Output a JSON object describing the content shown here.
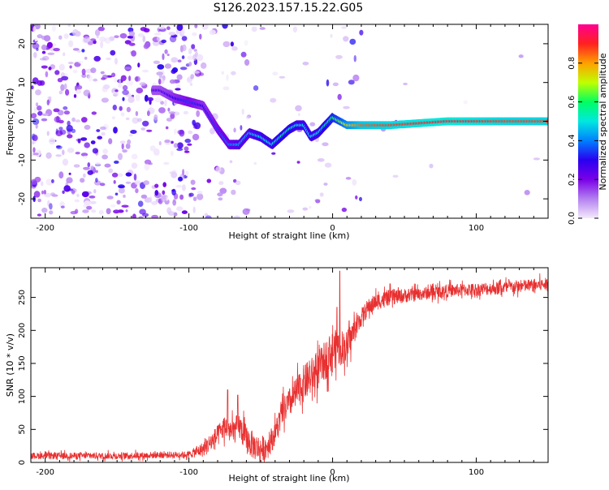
{
  "title": "S126.2023.157.15.22.G05",
  "chart_data": [
    {
      "type": "heatmap",
      "name": "spectrogram",
      "xlabel": "Height of straight line (km)",
      "ylabel": "Frequency (Hz)",
      "xlim": [
        -210,
        150
      ],
      "ylim": [
        -25,
        25
      ],
      "xticks": [
        -200,
        -100,
        0,
        100
      ],
      "yticks": [
        -20,
        -10,
        0,
        10,
        20
      ],
      "colorbar": {
        "label": "Normalized spectral amplitude",
        "range": [
          0,
          1
        ],
        "ticks": [
          0.0,
          0.2,
          0.4,
          0.6,
          0.8
        ],
        "colormap": [
          "#f4eafc",
          "#b380f0",
          "#7a00e8",
          "#2a00f0",
          "#0080ff",
          "#00e8e0",
          "#00ff60",
          "#c0ff00",
          "#ffa000",
          "#ff2020",
          "#ff0090"
        ]
      },
      "ridge": {
        "description": "peak frequency vs height",
        "x": [
          -120,
          -110,
          -100,
          -90,
          -80,
          -72,
          -65,
          -58,
          -50,
          -42,
          -36,
          -30,
          -25,
          -20,
          -15,
          -10,
          -5,
          0,
          5,
          10,
          20,
          40,
          60,
          80,
          100,
          120,
          150
        ],
        "y": [
          8,
          6,
          5,
          4,
          -2,
          -6,
          -6,
          -3,
          -4,
          -6,
          -4,
          -2,
          -1,
          -1,
          -4,
          -3,
          -1,
          1,
          0,
          -1,
          -1,
          -1,
          -0.5,
          0,
          0,
          0,
          0
        ],
        "amplitude": [
          0.25,
          0.3,
          0.35,
          0.3,
          0.35,
          0.4,
          0.45,
          0.45,
          0.5,
          0.5,
          0.55,
          0.55,
          0.5,
          0.5,
          0.5,
          0.5,
          0.55,
          0.6,
          0.65,
          0.75,
          0.85,
          0.88,
          0.9,
          0.92,
          0.9,
          0.88,
          0.88
        ]
      }
    },
    {
      "type": "line",
      "name": "snr",
      "xlabel": "Height of straight line (km)",
      "ylabel": "SNR (10 * v/v)",
      "xlim": [
        -210,
        150
      ],
      "ylim": [
        0,
        295
      ],
      "xticks": [
        -200,
        -100,
        0,
        100
      ],
      "yticks": [
        0,
        50,
        100,
        150,
        200,
        250
      ],
      "color": "#e83030",
      "trend": {
        "x": [
          -210,
          -150,
          -100,
          -90,
          -80,
          -75,
          -70,
          -65,
          -60,
          -55,
          -50,
          -45,
          -40,
          -35,
          -30,
          -25,
          -20,
          -15,
          -10,
          -5,
          0,
          5,
          10,
          15,
          20,
          25,
          30,
          40,
          60,
          80,
          100,
          120,
          150
        ],
        "y": [
          10,
          10,
          12,
          20,
          40,
          55,
          45,
          55,
          35,
          25,
          20,
          25,
          45,
          75,
          90,
          105,
          120,
          130,
          140,
          155,
          170,
          175,
          175,
          200,
          220,
          235,
          243,
          250,
          255,
          260,
          262,
          265,
          270
        ]
      },
      "noise": {
        "x": [
          -210,
          -100,
          -85,
          -60,
          -40,
          -20,
          0,
          10,
          20,
          60,
          150
        ],
        "y": [
          5,
          5,
          15,
          22,
          18,
          28,
          30,
          25,
          14,
          10,
          10
        ]
      },
      "spikes": [
        {
          "x": -73,
          "y": 110
        },
        {
          "x": -66,
          "y": 102
        },
        {
          "x": 5,
          "y": 290
        },
        {
          "x": 3,
          "y": 235
        }
      ]
    }
  ]
}
